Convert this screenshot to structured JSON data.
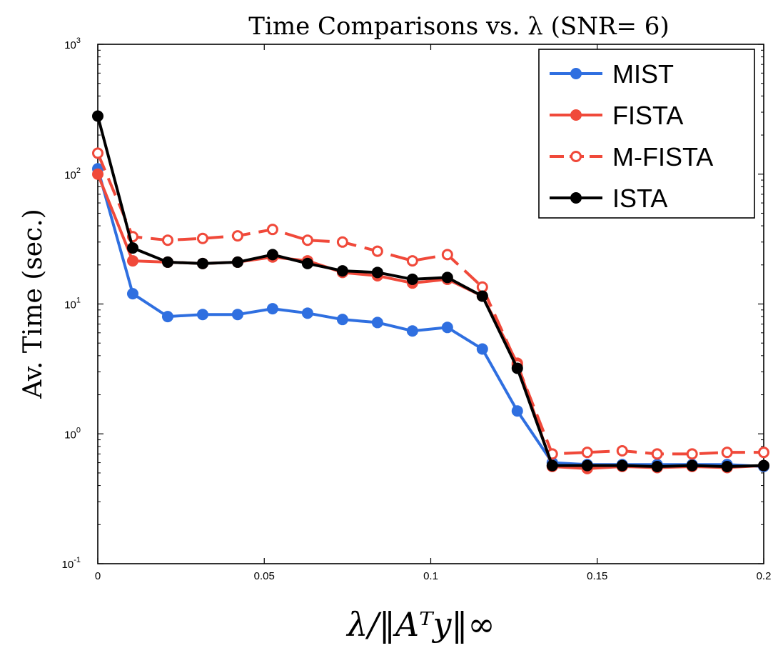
{
  "chart_data": {
    "type": "line",
    "title": "Time Comparisons vs. λ (SNR= 6)",
    "xlabel": "λ/‖Aᵀy‖∞",
    "ylabel": "Av. Time (sec.)",
    "yscale": "log",
    "xlim": [
      0,
      0.2
    ],
    "ylim": [
      0.1,
      1000
    ],
    "grid": false,
    "legend_position": "top-right",
    "x_ticks": [
      {
        "value": 0,
        "label": "0"
      },
      {
        "value": 0.05,
        "label": "0.05"
      },
      {
        "value": 0.1,
        "label": "0.1"
      },
      {
        "value": 0.15,
        "label": "0.15"
      },
      {
        "value": 0.2,
        "label": "0.2"
      }
    ],
    "y_ticks": [
      {
        "value": 0.1,
        "base": "10",
        "exp": "-1"
      },
      {
        "value": 1,
        "base": "10",
        "exp": "0"
      },
      {
        "value": 10,
        "base": "10",
        "exp": "1"
      },
      {
        "value": 100,
        "base": "10",
        "exp": "2"
      },
      {
        "value": 1000,
        "base": "10",
        "exp": "3"
      }
    ],
    "x": [
      0,
      0.0105,
      0.021,
      0.0315,
      0.042,
      0.0525,
      0.063,
      0.0735,
      0.084,
      0.0945,
      0.105,
      0.1155,
      0.126,
      0.1365,
      0.147,
      0.1575,
      0.168,
      0.1785,
      0.189,
      0.2
    ],
    "series": [
      {
        "name": "MIST",
        "color": "#2f6fe0",
        "style": "solid",
        "marker": "filled",
        "values": [
          110,
          12,
          8,
          8.3,
          8.3,
          9.2,
          8.5,
          7.6,
          7.2,
          6.2,
          6.6,
          4.5,
          1.5,
          0.6,
          0.58,
          0.58,
          0.58,
          0.58,
          0.58,
          0.56
        ]
      },
      {
        "name": "FISTA",
        "color": "#f0493a",
        "style": "solid",
        "marker": "filled",
        "values": [
          100,
          21.5,
          21,
          20.5,
          21,
          23,
          21.5,
          17.5,
          16.5,
          14.5,
          15.5,
          11.5,
          3.5,
          0.56,
          0.54,
          0.56,
          0.55,
          0.56,
          0.55,
          0.57
        ]
      },
      {
        "name": "M-FISTA",
        "color": "#f0493a",
        "style": "dashed",
        "marker": "open",
        "values": [
          145,
          33,
          31,
          32,
          33.5,
          37.5,
          31,
          30,
          25.5,
          21.5,
          24,
          13.5,
          3.4,
          0.7,
          0.72,
          0.74,
          0.7,
          0.7,
          0.72,
          0.72
        ]
      },
      {
        "name": "ISTA",
        "color": "#000000",
        "style": "solid",
        "marker": "filled",
        "values": [
          280,
          27,
          21,
          20.5,
          21,
          24,
          20.5,
          18,
          17.5,
          15.5,
          16,
          11.5,
          3.2,
          0.57,
          0.57,
          0.57,
          0.56,
          0.57,
          0.56,
          0.57
        ]
      }
    ]
  }
}
